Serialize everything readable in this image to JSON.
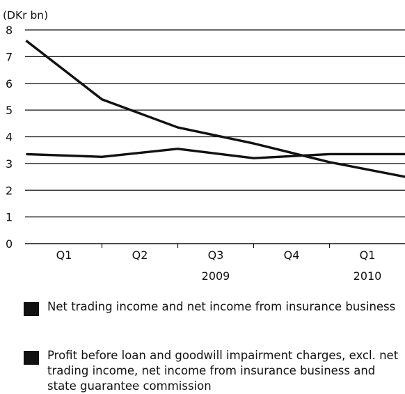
{
  "chart_data": {
    "type": "line",
    "unit_label": "(DKr bn)",
    "categories": [
      "Q1",
      "Q2",
      "Q3",
      "Q4",
      "Q1"
    ],
    "year_labels": [
      {
        "label": "2009",
        "category_index": 2
      },
      {
        "label": "2010",
        "category_index": 4
      }
    ],
    "ylim": [
      0,
      8
    ],
    "yticks": [
      0,
      1,
      2,
      3,
      4,
      5,
      6,
      7,
      8
    ],
    "grid": true,
    "legend_placement": "bottom",
    "series": [
      {
        "name": "Net trading income and net income from insurance business",
        "x": [
          -0.5,
          0.5,
          1.5,
          2.5,
          3.5,
          4.5
        ],
        "values": [
          7.6,
          5.4,
          4.35,
          3.75,
          3.05,
          2.5
        ],
        "color": "#111111"
      },
      {
        "name": "Profit before loan and goodwill impairment charges, excl. net trading income, net income from insurance business and state guarantee commission",
        "x": [
          -0.5,
          0.5,
          1.5,
          2.5,
          3.5,
          4.5
        ],
        "values": [
          3.35,
          3.25,
          3.55,
          3.2,
          3.35,
          3.35
        ],
        "color": "#111111"
      }
    ]
  },
  "legend": [
    {
      "label": "Net trading income and net income from insurance business"
    },
    {
      "label": "Profit before loan and goodwill impairment charges, excl. net trading income, net income from insurance business and state guarantee commission"
    }
  ]
}
